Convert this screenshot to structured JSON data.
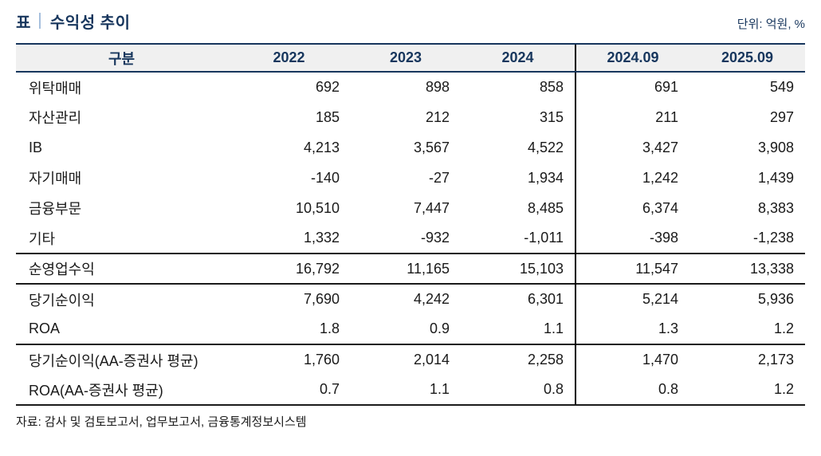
{
  "title": {
    "prefix": "표",
    "text": "수익성 추이"
  },
  "unit_label": "단위: 억원, %",
  "source": "자료: 감사 및 검토보고서, 업무보고서, 금융통계정보시스템",
  "colors": {
    "accent_navy": "#17365d",
    "title_divider_blue": "#a6bfdd",
    "header_background": "#f0f0f0",
    "rule_black": "#1a1a1a"
  },
  "table": {
    "columns": [
      "구분",
      "2022",
      "2023",
      "2024",
      "2024.09",
      "2025.09"
    ],
    "divider_before_column_index": 4,
    "rows": [
      {
        "label": "위탁매매",
        "values": [
          "692",
          "898",
          "858",
          "691",
          "549"
        ],
        "group_start": false
      },
      {
        "label": "자산관리",
        "values": [
          "185",
          "212",
          "315",
          "211",
          "297"
        ],
        "group_start": false
      },
      {
        "label": "IB",
        "values": [
          "4,213",
          "3,567",
          "4,522",
          "3,427",
          "3,908"
        ],
        "group_start": false
      },
      {
        "label": "자기매매",
        "values": [
          "-140",
          "-27",
          "1,934",
          "1,242",
          "1,439"
        ],
        "group_start": false
      },
      {
        "label": "금융부문",
        "values": [
          "10,510",
          "7,447",
          "8,485",
          "6,374",
          "8,383"
        ],
        "group_start": false
      },
      {
        "label": "기타",
        "values": [
          "1,332",
          "-932",
          "-1,011",
          "-398",
          "-1,238"
        ],
        "group_start": false
      },
      {
        "label": "순영업수익",
        "values": [
          "16,792",
          "11,165",
          "15,103",
          "11,547",
          "13,338"
        ],
        "group_start": true
      },
      {
        "label": "당기순이익",
        "values": [
          "7,690",
          "4,242",
          "6,301",
          "5,214",
          "5,936"
        ],
        "group_start": true
      },
      {
        "label": "ROA",
        "values": [
          "1.8",
          "0.9",
          "1.1",
          "1.3",
          "1.2"
        ],
        "group_start": false
      },
      {
        "label": "당기순이익(AA-증권사 평균)",
        "values": [
          "1,760",
          "2,014",
          "2,258",
          "1,470",
          "2,173"
        ],
        "group_start": true
      },
      {
        "label": "ROA(AA-증권사 평균)",
        "values": [
          "0.7",
          "1.1",
          "0.8",
          "0.8",
          "1.2"
        ],
        "group_start": false
      }
    ]
  }
}
